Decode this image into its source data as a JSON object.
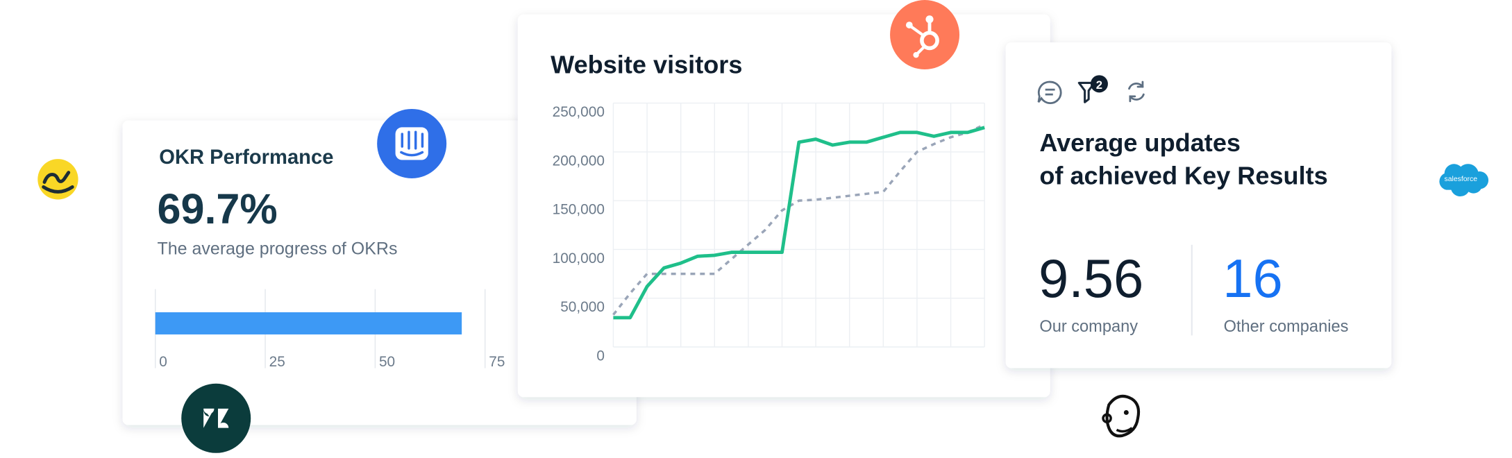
{
  "chart_data": [
    {
      "type": "bar",
      "orientation": "horizontal",
      "title": "OKR Performance",
      "subtitle": "The average progress of OKRs",
      "values": [
        69.7
      ],
      "value_labels": [
        "69.7%"
      ],
      "color": "#3d99f5",
      "xlim": [
        0,
        75
      ],
      "xticks": [
        0,
        25,
        50,
        75
      ],
      "grid": true
    },
    {
      "type": "line",
      "title": "Website visitors",
      "series": [
        {
          "color": "#1fbf8a",
          "style": "solid",
          "values": [
            30000,
            30000,
            62000,
            81000,
            86000,
            93000,
            94000,
            97000,
            97000,
            97000,
            97000,
            210000,
            213000,
            207000,
            210000,
            210000,
            215000,
            220000,
            220000,
            216000,
            220000,
            220000,
            225000
          ]
        },
        {
          "color": "#9aa5b8",
          "style": "dashed",
          "values": [
            33000,
            55000,
            75000,
            75000,
            75000,
            75000,
            75000,
            90000,
            105000,
            120000,
            140000,
            150000,
            151000,
            153000,
            155000,
            157000,
            159000,
            180000,
            200000,
            208000,
            215000,
            220000,
            228000
          ]
        }
      ],
      "ylim": [
        0,
        250000
      ],
      "yticks": [
        0,
        {
          "value": 50000,
          "label": "50,000"
        },
        {
          "value": 100000,
          "label": "100,000"
        },
        {
          "value": 150000,
          "label": "150,000"
        },
        {
          "value": 200000,
          "label": "200,000"
        },
        {
          "value": 250000,
          "label": "250,000"
        }
      ],
      "grid": true
    }
  ],
  "updates_card": {
    "filter_badge": "2",
    "title_lines": [
      "Average updates",
      "of achieved Key Results"
    ],
    "stats": [
      {
        "value": "9.56",
        "label": "Our company"
      },
      {
        "value": "16",
        "label": "Other companies"
      }
    ]
  },
  "salesforce_logo": "salesforce"
}
